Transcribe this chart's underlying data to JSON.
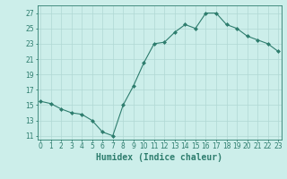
{
  "x": [
    0,
    1,
    2,
    3,
    4,
    5,
    6,
    7,
    8,
    9,
    10,
    11,
    12,
    13,
    14,
    15,
    16,
    17,
    18,
    19,
    20,
    21,
    22,
    23
  ],
  "y": [
    15.5,
    15.2,
    14.5,
    14.0,
    13.8,
    13.0,
    11.5,
    11.0,
    15.0,
    17.5,
    20.5,
    23.0,
    23.2,
    24.5,
    25.5,
    25.0,
    27.0,
    27.0,
    25.5,
    25.0,
    24.0,
    23.5,
    23.0,
    22.0
  ],
  "line_color": "#2e7d6e",
  "marker": "D",
  "marker_size": 2.0,
  "bg_color": "#cceeea",
  "grid_color": "#b0d8d4",
  "xlabel": "Humidex (Indice chaleur)",
  "ylim": [
    10.5,
    28
  ],
  "yticks": [
    11,
    13,
    15,
    17,
    19,
    21,
    23,
    25,
    27
  ],
  "xticks": [
    0,
    1,
    2,
    3,
    4,
    5,
    6,
    7,
    8,
    9,
    10,
    11,
    12,
    13,
    14,
    15,
    16,
    17,
    18,
    19,
    20,
    21,
    22,
    23
  ],
  "tick_fontsize": 5.5,
  "xlabel_fontsize": 7.0,
  "xlim": [
    -0.3,
    23.3
  ]
}
